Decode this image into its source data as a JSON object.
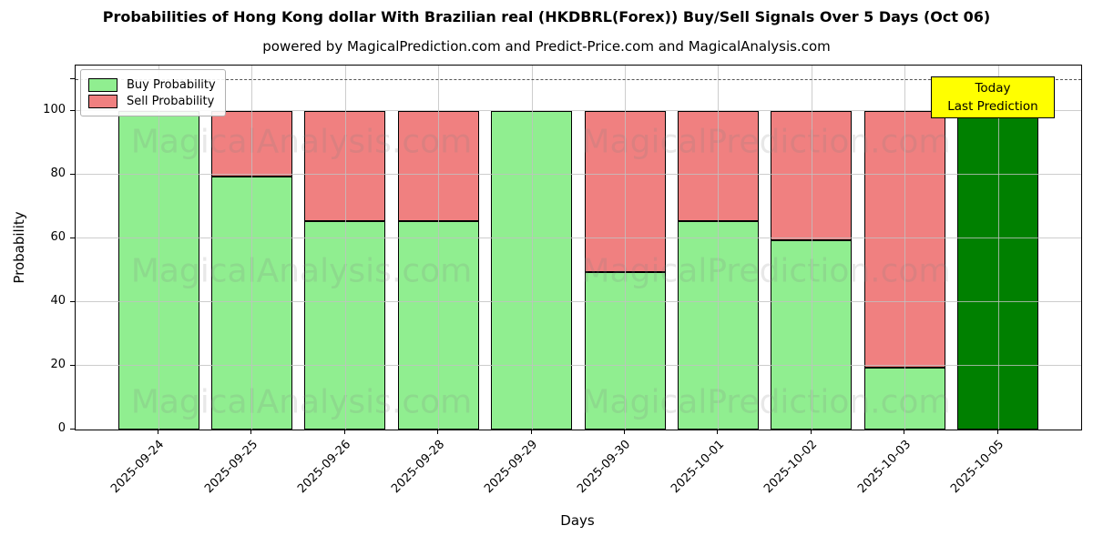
{
  "title": "Probabilities of Hong Kong dollar With Brazilian real (HKDBRL(Forex)) Buy/Sell Signals Over 5 Days (Oct 06)",
  "subtitle": "powered by MagicalPrediction.com and Predict-Price.com and MagicalAnalysis.com",
  "axes": {
    "xlabel": "Days",
    "ylabel": "Probability",
    "yticks": [
      0,
      20,
      40,
      60,
      80,
      100
    ],
    "ylim": [
      0,
      114.3
    ],
    "dashed_guide_y": 110,
    "grid": true
  },
  "legend": {
    "position": "upper left",
    "items": [
      {
        "label": "Buy Probability",
        "color": "#90ee90"
      },
      {
        "label": "Sell Probability",
        "color": "#f08080"
      }
    ]
  },
  "annotation_box": {
    "lines": [
      "Today",
      "Last Prediction"
    ],
    "bg_color": "#ffff00",
    "border_color": "#000000"
  },
  "watermark": {
    "left_text": "MagicalAnalysis.com",
    "right_text": "MagicalPrediction.com"
  },
  "chart_data": {
    "type": "bar",
    "stacked": true,
    "title": "Probabilities of Hong Kong dollar With Brazilian real (HKDBRL(Forex)) Buy/Sell Signals Over 5 Days (Oct 06)",
    "xlabel": "Days",
    "ylabel": "Probability",
    "ylim": [
      0,
      114.3
    ],
    "categories": [
      "2025-09-24",
      "2025-09-25",
      "2025-09-26",
      "2025-09-28",
      "2025-09-29",
      "2025-09-30",
      "2025-10-01",
      "2025-10-02",
      "2025-10-03",
      "2025-10-05"
    ],
    "series": [
      {
        "name": "Buy Probability",
        "color": "#90ee90",
        "values": [
          100,
          79.5,
          65.5,
          65.5,
          100,
          49.5,
          65.5,
          59.5,
          19.5,
          100
        ]
      },
      {
        "name": "Sell Probability",
        "color": "#f08080",
        "values": [
          0,
          20.5,
          34.5,
          34.5,
          0,
          50.5,
          34.5,
          40.5,
          80.5,
          0
        ]
      }
    ],
    "special_bars": [
      {
        "index": 9,
        "color": "#008000",
        "meaning": "Today / Last Prediction"
      }
    ],
    "guide_line": {
      "y": 110,
      "style": "dashed",
      "color": "#555555"
    },
    "legend_position": "upper left",
    "grid": true
  },
  "colors": {
    "buy": "#90ee90",
    "sell": "#f08080",
    "today_bar": "#008000",
    "bar_edge": "#000000",
    "grid": "#c0c0c0",
    "dashed_guide": "#555555",
    "annotation_bg": "#ffff00",
    "watermark": "rgba(128,128,128,0.18)"
  }
}
